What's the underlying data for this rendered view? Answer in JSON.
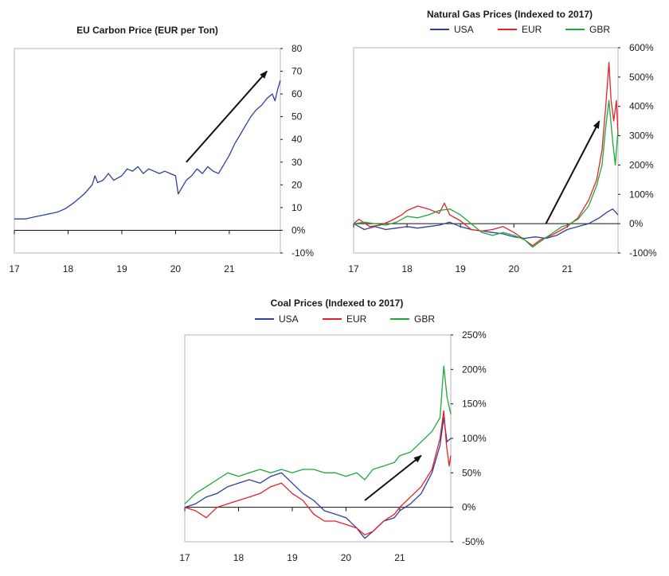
{
  "colors": {
    "USA": "#2e3f9e",
    "EUR": "#e32227",
    "GBR": "#1fa83c",
    "arrow": "#111111"
  },
  "chart_data": [
    {
      "id": "carbon",
      "type": "line",
      "title": "EU Carbon Price (EUR per Ton)",
      "ylim": [
        -10,
        80
      ],
      "yticks": [
        -10,
        0,
        10,
        20,
        30,
        40,
        50,
        60,
        70,
        80
      ],
      "ytick_labels": [
        "-10%",
        "0%",
        "10",
        "20",
        "30",
        "40",
        "50",
        "60",
        "70",
        "80"
      ],
      "xlim": [
        2017.0,
        2021.95
      ],
      "xticks": [
        2017,
        2018,
        2019,
        2020,
        2021
      ],
      "xtick_labels": [
        "17",
        "18",
        "19",
        "20",
        "21"
      ],
      "legend": [],
      "series": [
        {
          "name": "EU carbon",
          "color_key": "USA",
          "x": [
            2017.0,
            2017.2,
            2017.4,
            2017.6,
            2017.8,
            2017.95,
            2018.1,
            2018.2,
            2018.3,
            2018.45,
            2018.5,
            2018.55,
            2018.65,
            2018.75,
            2018.85,
            2019.0,
            2019.1,
            2019.2,
            2019.3,
            2019.4,
            2019.5,
            2019.6,
            2019.7,
            2019.8,
            2019.9,
            2020.0,
            2020.05,
            2020.15,
            2020.2,
            2020.3,
            2020.4,
            2020.5,
            2020.6,
            2020.7,
            2020.8,
            2020.9,
            2021.0,
            2021.1,
            2021.2,
            2021.3,
            2021.4,
            2021.5,
            2021.6,
            2021.7,
            2021.8,
            2021.85,
            2021.9,
            2021.95
          ],
          "y": [
            5,
            5,
            6,
            7,
            8,
            9.5,
            12,
            14,
            16,
            20,
            24,
            21,
            22,
            25,
            22,
            24,
            27,
            26,
            28,
            25,
            27,
            26,
            25,
            26,
            25,
            24,
            16,
            20,
            22,
            24,
            27,
            25,
            28,
            26,
            25,
            29,
            33,
            38,
            42,
            46,
            50,
            53,
            55,
            58,
            60,
            57,
            62,
            66
          ]
        }
      ],
      "annotations": [
        {
          "type": "arrow",
          "from": [
            2020.2,
            30
          ],
          "to": [
            2021.7,
            70
          ]
        }
      ]
    },
    {
      "id": "gas",
      "type": "line",
      "title": "Natural Gas Prices (Indexed to 2017)",
      "ylim": [
        -100,
        600
      ],
      "yticks": [
        -100,
        0,
        100,
        200,
        300,
        400,
        500,
        600
      ],
      "ytick_labels": [
        "-100%",
        "0%",
        "100%",
        "200%",
        "300%",
        "400%",
        "500%",
        "600%"
      ],
      "xlim": [
        2017.0,
        2021.95
      ],
      "xticks": [
        2017,
        2018,
        2019,
        2020,
        2021
      ],
      "xtick_labels": [
        "17",
        "18",
        "19",
        "20",
        "21"
      ],
      "legend": [
        "USA",
        "EUR",
        "GBR"
      ],
      "series": [
        {
          "name": "USA",
          "x": [
            2017.0,
            2017.2,
            2017.4,
            2017.6,
            2017.8,
            2018.0,
            2018.2,
            2018.4,
            2018.6,
            2018.8,
            2019.0,
            2019.2,
            2019.4,
            2019.6,
            2019.8,
            2020.0,
            2020.2,
            2020.4,
            2020.6,
            2020.8,
            2021.0,
            2021.2,
            2021.4,
            2021.6,
            2021.75,
            2021.85,
            2021.95
          ],
          "y": [
            0,
            -20,
            -10,
            -20,
            -15,
            -10,
            -15,
            -10,
            -5,
            5,
            -10,
            -20,
            -25,
            -30,
            -35,
            -45,
            -50,
            -45,
            -50,
            -40,
            -20,
            -10,
            0,
            20,
            40,
            50,
            30
          ]
        },
        {
          "name": "EUR",
          "x": [
            2017.0,
            2017.1,
            2017.3,
            2017.5,
            2017.7,
            2017.9,
            2018.0,
            2018.2,
            2018.4,
            2018.6,
            2018.7,
            2018.8,
            2019.0,
            2019.2,
            2019.4,
            2019.6,
            2019.8,
            2020.0,
            2020.2,
            2020.35,
            2020.5,
            2020.7,
            2020.9,
            2021.0,
            2021.2,
            2021.4,
            2021.55,
            2021.65,
            2021.72,
            2021.78,
            2021.82,
            2021.87,
            2021.92,
            2021.95
          ],
          "y": [
            0,
            15,
            -10,
            -5,
            10,
            30,
            45,
            60,
            50,
            35,
            70,
            30,
            10,
            -20,
            -25,
            -20,
            -10,
            -30,
            -55,
            -75,
            -55,
            -40,
            -20,
            -10,
            20,
            80,
            150,
            250,
            400,
            550,
            420,
            350,
            420,
            300
          ]
        },
        {
          "name": "GBR",
          "x": [
            2017.0,
            2017.2,
            2017.4,
            2017.6,
            2017.8,
            2018.0,
            2018.2,
            2018.4,
            2018.6,
            2018.8,
            2019.0,
            2019.2,
            2019.4,
            2019.6,
            2019.8,
            2020.0,
            2020.2,
            2020.35,
            2020.5,
            2020.7,
            2020.9,
            2021.0,
            2021.2,
            2021.4,
            2021.55,
            2021.65,
            2021.72,
            2021.78,
            2021.85,
            2021.9,
            2021.95
          ],
          "y": [
            0,
            5,
            0,
            -5,
            5,
            25,
            20,
            30,
            45,
            50,
            30,
            0,
            -30,
            -40,
            -30,
            -40,
            -55,
            -80,
            -60,
            -35,
            -10,
            -5,
            15,
            60,
            130,
            200,
            330,
            420,
            280,
            200,
            320
          ]
        }
      ],
      "annotations": [
        {
          "type": "arrow",
          "from": [
            2020.6,
            0
          ],
          "to": [
            2021.6,
            350
          ]
        }
      ]
    },
    {
      "id": "coal",
      "type": "line",
      "title": "Coal Prices (Indexed to 2017)",
      "ylim": [
        -50,
        250
      ],
      "yticks": [
        -50,
        0,
        50,
        100,
        150,
        200,
        250
      ],
      "ytick_labels": [
        "-50%",
        "0%",
        "50%",
        "100%",
        "150%",
        "200%",
        "250%"
      ],
      "xlim": [
        2017.0,
        2021.95
      ],
      "xticks": [
        2017,
        2018,
        2019,
        2020,
        2021
      ],
      "xtick_labels": [
        "17",
        "18",
        "19",
        "20",
        "21"
      ],
      "legend": [
        "USA",
        "EUR",
        "GBR"
      ],
      "series": [
        {
          "name": "USA",
          "x": [
            2017.0,
            2017.2,
            2017.4,
            2017.6,
            2017.8,
            2018.0,
            2018.2,
            2018.4,
            2018.6,
            2018.8,
            2019.0,
            2019.2,
            2019.4,
            2019.6,
            2019.8,
            2020.0,
            2020.2,
            2020.35,
            2020.5,
            2020.7,
            2020.9,
            2021.0,
            2021.2,
            2021.4,
            2021.6,
            2021.75,
            2021.82,
            2021.88,
            2021.95
          ],
          "y": [
            0,
            5,
            15,
            20,
            30,
            35,
            40,
            35,
            45,
            50,
            35,
            20,
            10,
            -5,
            -10,
            -15,
            -30,
            -45,
            -35,
            -20,
            -15,
            -5,
            5,
            20,
            50,
            90,
            130,
            95,
            100
          ]
        },
        {
          "name": "EUR",
          "x": [
            2017.0,
            2017.2,
            2017.4,
            2017.6,
            2017.8,
            2018.0,
            2018.2,
            2018.4,
            2018.6,
            2018.8,
            2019.0,
            2019.2,
            2019.4,
            2019.6,
            2019.8,
            2020.0,
            2020.2,
            2020.35,
            2020.5,
            2020.7,
            2020.9,
            2021.0,
            2021.2,
            2021.4,
            2021.6,
            2021.75,
            2021.82,
            2021.87,
            2021.92,
            2021.95
          ],
          "y": [
            0,
            -5,
            -15,
            0,
            5,
            10,
            15,
            20,
            30,
            35,
            20,
            10,
            -10,
            -20,
            -20,
            -25,
            -30,
            -40,
            -35,
            -20,
            -10,
            0,
            15,
            30,
            55,
            100,
            140,
            90,
            60,
            75
          ]
        },
        {
          "name": "GBR",
          "x": [
            2017.0,
            2017.2,
            2017.4,
            2017.6,
            2017.8,
            2018.0,
            2018.2,
            2018.4,
            2018.6,
            2018.8,
            2019.0,
            2019.2,
            2019.4,
            2019.6,
            2019.8,
            2020.0,
            2020.2,
            2020.35,
            2020.5,
            2020.7,
            2020.9,
            2021.0,
            2021.2,
            2021.4,
            2021.6,
            2021.75,
            2021.82,
            2021.88,
            2021.95
          ],
          "y": [
            5,
            20,
            30,
            40,
            50,
            45,
            50,
            55,
            50,
            55,
            50,
            55,
            55,
            50,
            50,
            45,
            50,
            40,
            55,
            60,
            65,
            75,
            80,
            95,
            110,
            130,
            205,
            160,
            135
          ]
        }
      ],
      "annotations": [
        {
          "type": "arrow",
          "from": [
            2020.35,
            10
          ],
          "to": [
            2021.4,
            75
          ]
        }
      ]
    }
  ]
}
